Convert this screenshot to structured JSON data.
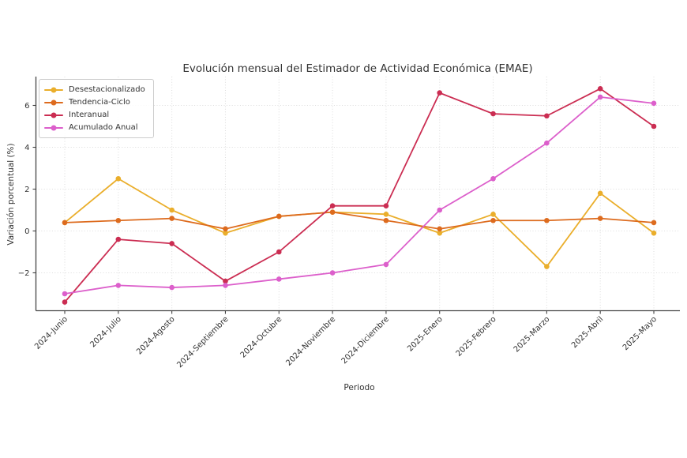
{
  "chart_data": {
    "type": "line",
    "title": "Evolución mensual del Estimador de Actividad Económica (EMAE)",
    "xlabel": "Periodo",
    "ylabel": "Variación porcentual (%)",
    "categories": [
      "2024-Junio",
      "2024-Julio",
      "2024-Agosto",
      "2024-Septiembre",
      "2024-Octubre",
      "2024-Noviembre",
      "2024-Diciembre",
      "2025-Enero",
      "2025-Febrero",
      "2025-Marzo",
      "2025-Abril",
      "2025-Mayo"
    ],
    "series": [
      {
        "name": "Desestacionalizado",
        "color": "#EAAE2B",
        "values": [
          0.4,
          2.5,
          1.0,
          -0.1,
          0.7,
          0.9,
          0.8,
          -0.1,
          0.8,
          -1.7,
          1.8,
          -0.1
        ]
      },
      {
        "name": "Tendencia-Ciclo",
        "color": "#DD6B1E",
        "values": [
          0.4,
          0.5,
          0.6,
          0.1,
          0.7,
          0.9,
          0.5,
          0.1,
          0.5,
          0.5,
          0.6,
          0.4
        ]
      },
      {
        "name": "Interanual",
        "color": "#CB2D52",
        "values": [
          -3.4,
          -0.4,
          -0.6,
          -2.4,
          -1.0,
          1.2,
          1.2,
          6.6,
          5.6,
          5.5,
          6.8,
          5.0
        ]
      },
      {
        "name": "Acumulado Anual",
        "color": "#DC5FCB",
        "values": [
          -3.0,
          -2.6,
          -2.7,
          -2.6,
          -2.3,
          -2.0,
          -1.6,
          1.0,
          2.5,
          4.2,
          6.4,
          6.1
        ]
      }
    ],
    "yticks": [
      -2,
      0,
      2,
      4,
      6
    ],
    "ylim": [
      -3.8,
      7.3
    ],
    "grid": true,
    "grid_style": "dotted",
    "legend_position": "upper left",
    "x_tick_rotation": 45
  },
  "style": {
    "background": "#ffffff",
    "grid_color": "#dcdcdc",
    "axis_color": "#444444",
    "text_color": "#333333",
    "legend_border": "#cccccc"
  }
}
